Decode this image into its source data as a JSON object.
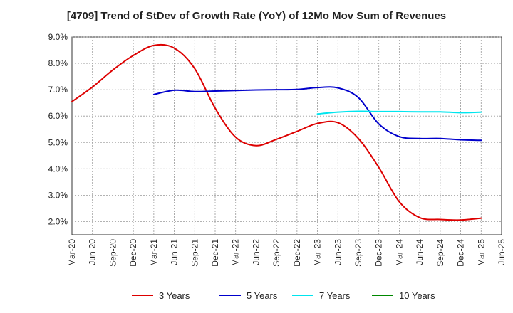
{
  "chart_data": {
    "type": "line",
    "title": "[4709]  Trend of StDev of Growth Rate (YoY) of 12Mo Mov Sum of Revenues",
    "xlabel": "",
    "ylabel": "",
    "ylim": [
      1.5,
      9.0
    ],
    "y_ticks": [
      "2.0%",
      "3.0%",
      "4.0%",
      "5.0%",
      "6.0%",
      "7.0%",
      "8.0%",
      "9.0%"
    ],
    "y_tick_values": [
      2,
      3,
      4,
      5,
      6,
      7,
      8,
      9
    ],
    "x_ticks": [
      "Mar-20",
      "Jun-20",
      "Sep-20",
      "Dec-20",
      "Mar-21",
      "Jun-21",
      "Sep-21",
      "Dec-21",
      "Mar-22",
      "Jun-22",
      "Sep-22",
      "Dec-22",
      "Mar-23",
      "Jun-23",
      "Sep-23",
      "Dec-23",
      "Mar-24",
      "Jun-24",
      "Sep-24",
      "Dec-24",
      "Mar-25",
      "Jun-25"
    ],
    "grid": true,
    "legend_position": "bottom",
    "series": [
      {
        "name": "3 Years",
        "color": "#dd0000",
        "points": [
          [
            0,
            6.55
          ],
          [
            1,
            7.1
          ],
          [
            2,
            7.75
          ],
          [
            3,
            8.3
          ],
          [
            4,
            8.68
          ],
          [
            5,
            8.58
          ],
          [
            6,
            7.8
          ],
          [
            7,
            6.3
          ],
          [
            8,
            5.2
          ],
          [
            9,
            4.88
          ],
          [
            10,
            5.12
          ],
          [
            11,
            5.42
          ],
          [
            12,
            5.72
          ],
          [
            13,
            5.75
          ],
          [
            14,
            5.15
          ],
          [
            15,
            4.05
          ],
          [
            16,
            2.75
          ],
          [
            17,
            2.15
          ],
          [
            18,
            2.08
          ],
          [
            19,
            2.06
          ],
          [
            20,
            2.13
          ]
        ]
      },
      {
        "name": "5 Years",
        "color": "#0000cc",
        "points": [
          [
            4,
            6.82
          ],
          [
            5,
            6.98
          ],
          [
            6,
            6.93
          ],
          [
            7,
            6.95
          ],
          [
            8,
            6.97
          ],
          [
            9,
            6.99
          ],
          [
            10,
            7.0
          ],
          [
            11,
            7.01
          ],
          [
            12,
            7.08
          ],
          [
            13,
            7.07
          ],
          [
            14,
            6.7
          ],
          [
            15,
            5.7
          ],
          [
            16,
            5.22
          ],
          [
            17,
            5.15
          ],
          [
            18,
            5.15
          ],
          [
            19,
            5.1
          ],
          [
            20,
            5.08
          ]
        ]
      },
      {
        "name": "7 Years",
        "color": "#00e5ee",
        "points": [
          [
            12,
            6.08
          ],
          [
            13,
            6.15
          ],
          [
            14,
            6.18
          ],
          [
            15,
            6.17
          ],
          [
            16,
            6.17
          ],
          [
            17,
            6.16
          ],
          [
            18,
            6.16
          ],
          [
            19,
            6.13
          ],
          [
            20,
            6.15
          ]
        ]
      },
      {
        "name": "10 Years",
        "color": "#008800",
        "points": []
      }
    ]
  }
}
